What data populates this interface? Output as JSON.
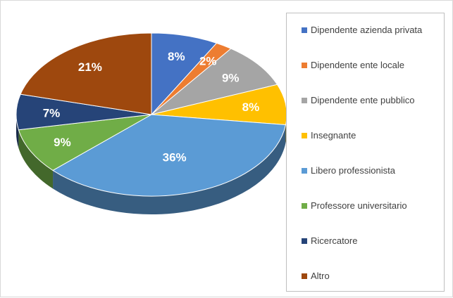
{
  "chart_data": {
    "type": "pie",
    "title": "",
    "categories": [
      "Dipendente azienda privata",
      "Dipendente ente locale",
      "Dipendente ente pubblico",
      "Insegnante",
      "Libero professionista",
      "Professore universitario",
      "Ricercatore",
      "Altro"
    ],
    "values": [
      8,
      2,
      9,
      8,
      36,
      9,
      7,
      21
    ],
    "labels": [
      "8%",
      "2%",
      "9%",
      "8%",
      "36%",
      "9%",
      "7%",
      "21%"
    ],
    "colors": [
      "#4472c4",
      "#ed7d31",
      "#a5a5a5",
      "#ffc000",
      "#5b9bd5",
      "#70ad47",
      "#264478",
      "#9e480e"
    ],
    "label_colors": [
      "#ffffff",
      "#ffffff",
      "#ffffff",
      "#ffffff",
      "#ffffff",
      "#ffffff",
      "#ffffff",
      "#ffffff"
    ],
    "legend_position": "right",
    "style": "3d"
  }
}
